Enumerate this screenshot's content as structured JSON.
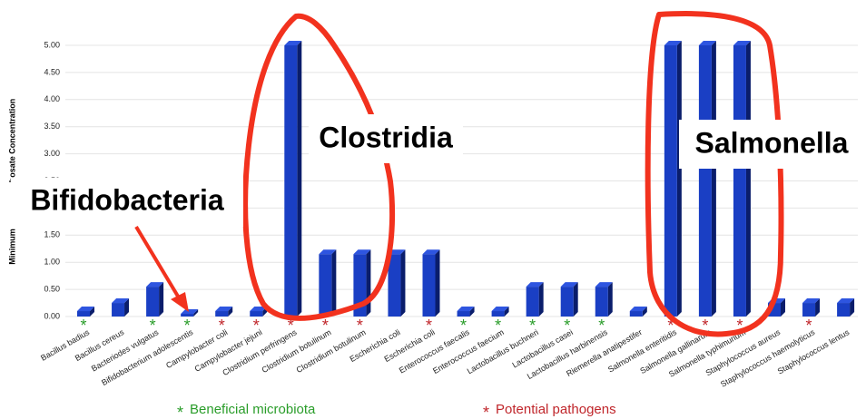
{
  "chart_data": {
    "type": "bar",
    "y_label_parts": [
      "hosate Concentration",
      "Minimum"
    ],
    "categories": [
      "Bacillus badius",
      "Bacillus cereus",
      "Bacteriodes vulgatus",
      "Bifidobacterium adolescentis",
      "Campylobacter coli",
      "Campylobacter jejuni",
      "Clostridium perfringens",
      "Clostridium botulinum",
      "Clostridium botulinum",
      "Escherichia coli",
      "Escherichia coli",
      "Enterococcus faecalis",
      "Enterococcus faecium",
      "Lactobacillus buchneri",
      "Lactobacillus casei",
      "Lactobacillus harbinensis",
      "Riemerella anatipestifer",
      "Salmonella enteritidis",
      "Salmonella gallinarum",
      "Salmonella typhimurium",
      "Staphylococcus aureus",
      "Staphylococcus haemolyticus",
      "Staphylococcus lentus"
    ],
    "values": [
      0.1,
      0.25,
      0.55,
      0.05,
      0.1,
      0.1,
      5,
      1.15,
      1.15,
      1.15,
      1.15,
      0.1,
      0.1,
      0.55,
      0.55,
      0.55,
      0.1,
      5,
      5,
      5,
      0.25,
      0.25,
      0.25
    ],
    "color": "#1a3fc4",
    "ylim": [
      0,
      5
    ],
    "yticks": [
      {
        "value": 0,
        "label": "0.00"
      },
      {
        "value": 0.5,
        "label": "0.50"
      },
      {
        "value": 1,
        "label": "1.00"
      },
      {
        "value": 1.5,
        "label": "1.50"
      },
      {
        "value": 2,
        "label": "2.00"
      },
      {
        "value": 2.5,
        "label": "2.50"
      },
      {
        "value": 3,
        "label": "3.00"
      },
      {
        "value": 3.5,
        "label": "3.50"
      },
      {
        "value": 4,
        "label": "4.00"
      },
      {
        "value": 4.5,
        "label": "4.50"
      },
      {
        "value": 5,
        "label": "5.00"
      }
    ],
    "grid": true,
    "legend": [
      {
        "symbol": "*",
        "label": "Beneficial microbiota",
        "color": "#2a9d2a",
        "categories": [
          0,
          2,
          3,
          11,
          12,
          13,
          14,
          15
        ]
      },
      {
        "symbol": "*",
        "label": "Potential pathogens",
        "color": "#c0262b",
        "categories": [
          4,
          5,
          6,
          7,
          8,
          10,
          17,
          18,
          19,
          21
        ]
      }
    ],
    "annotations": [
      "Clostridia",
      "Salmonella",
      "Bifidobacteria"
    ]
  }
}
